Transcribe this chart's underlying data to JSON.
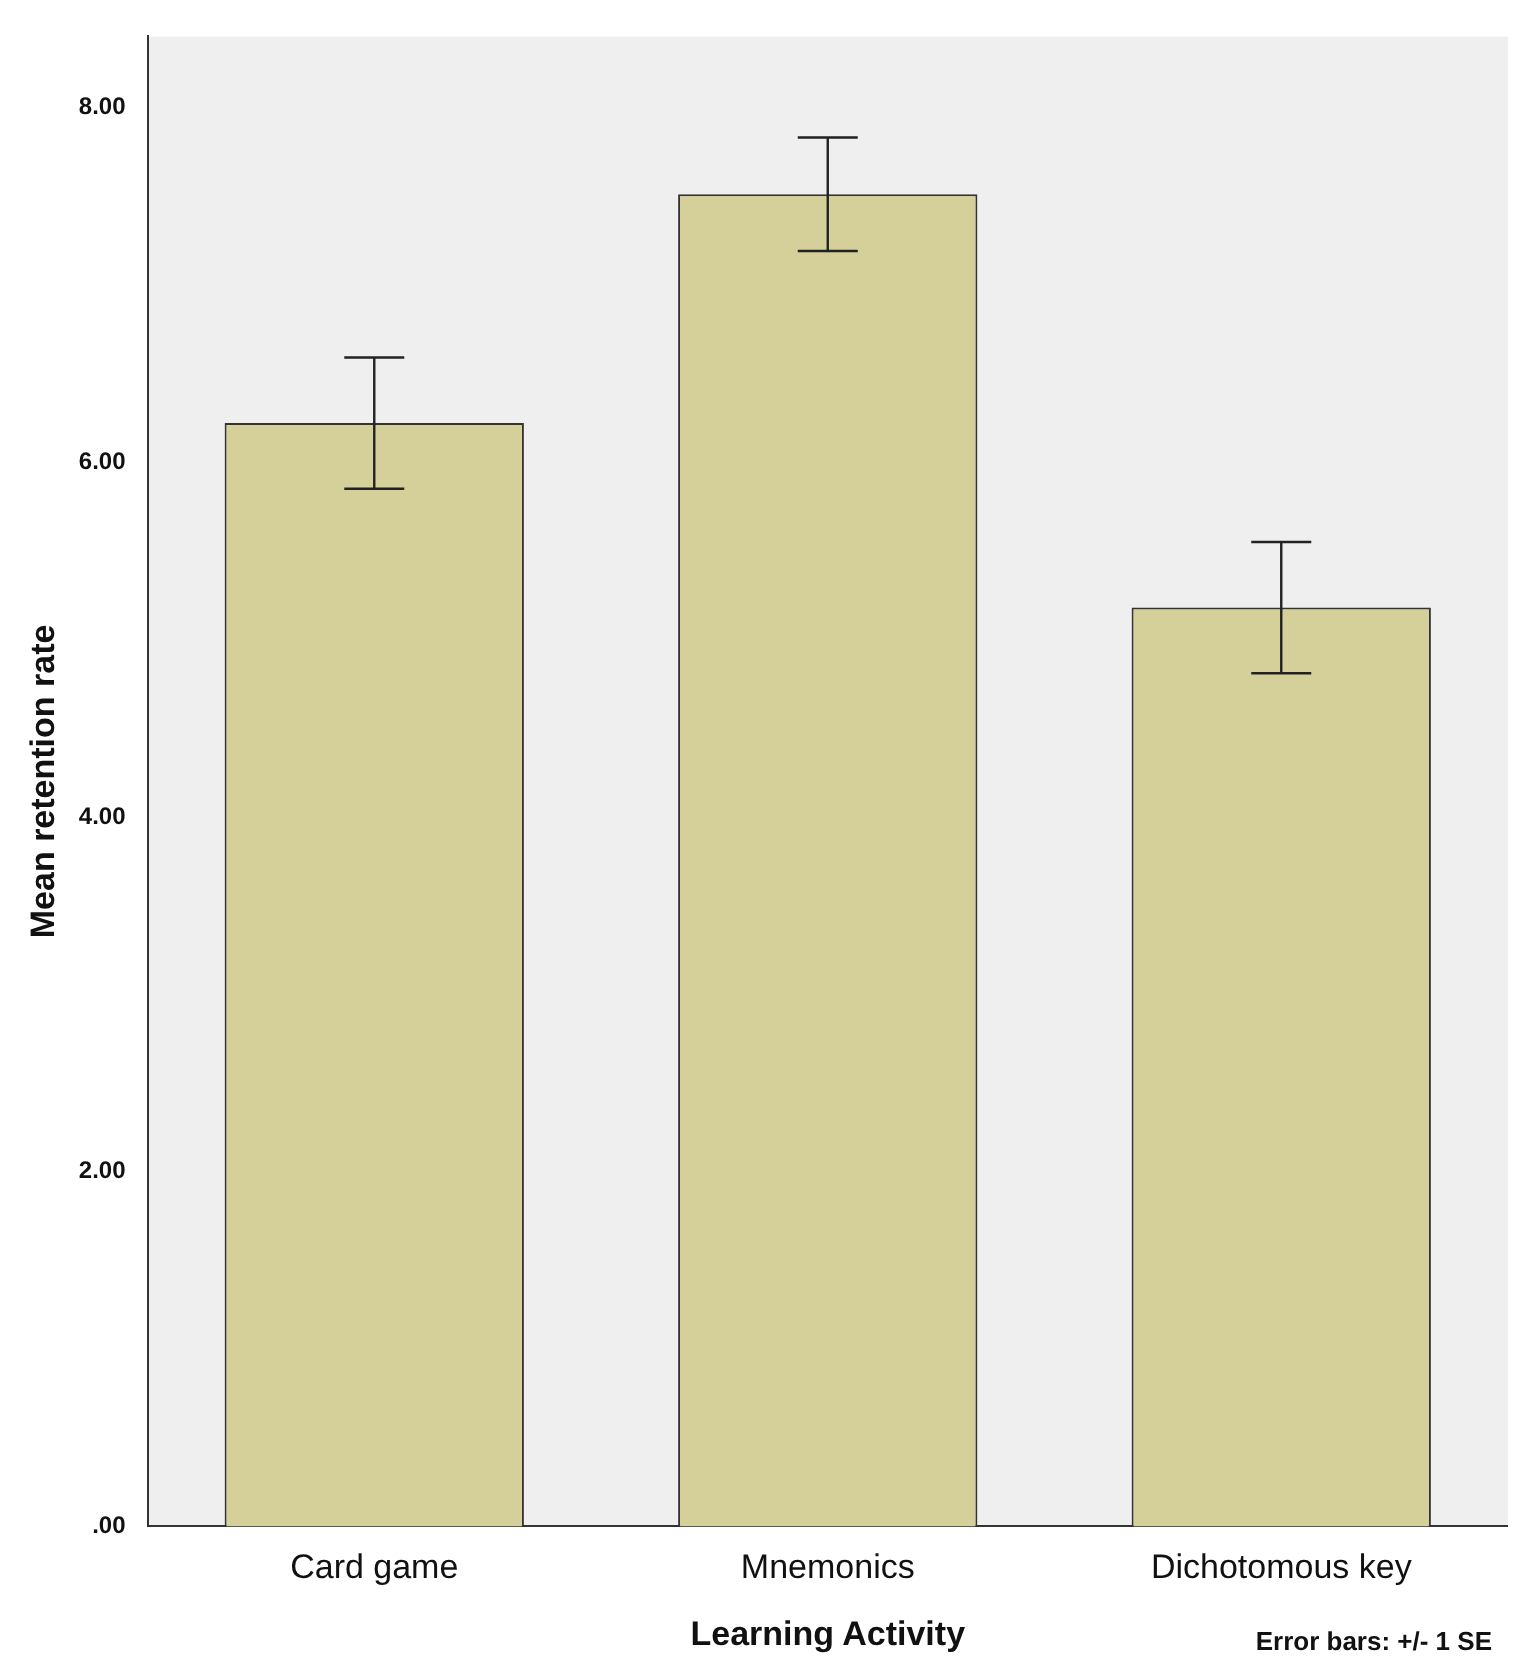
{
  "chart_data": {
    "type": "bar",
    "xlabel": "Learning Activity",
    "ylabel": "Mean retention rate",
    "categories": [
      "Card game",
      "Mnemonics",
      "Dichotomous key"
    ],
    "values": [
      6.22,
      7.51,
      5.18
    ],
    "errors": [
      0.37,
      0.32,
      0.37
    ],
    "color": "#d5cf9a",
    "ylim": [
      0,
      8.4
    ],
    "yticks": [
      {
        "value": 0,
        "label": ".00"
      },
      {
        "value": 2,
        "label": "2.00"
      },
      {
        "value": 4,
        "label": "4.00"
      },
      {
        "value": 6,
        "label": "6.00"
      },
      {
        "value": 8,
        "label": "8.00"
      }
    ],
    "grid": false,
    "legend": false,
    "annotations": [
      "Error bars: +/- 1 SE"
    ]
  }
}
